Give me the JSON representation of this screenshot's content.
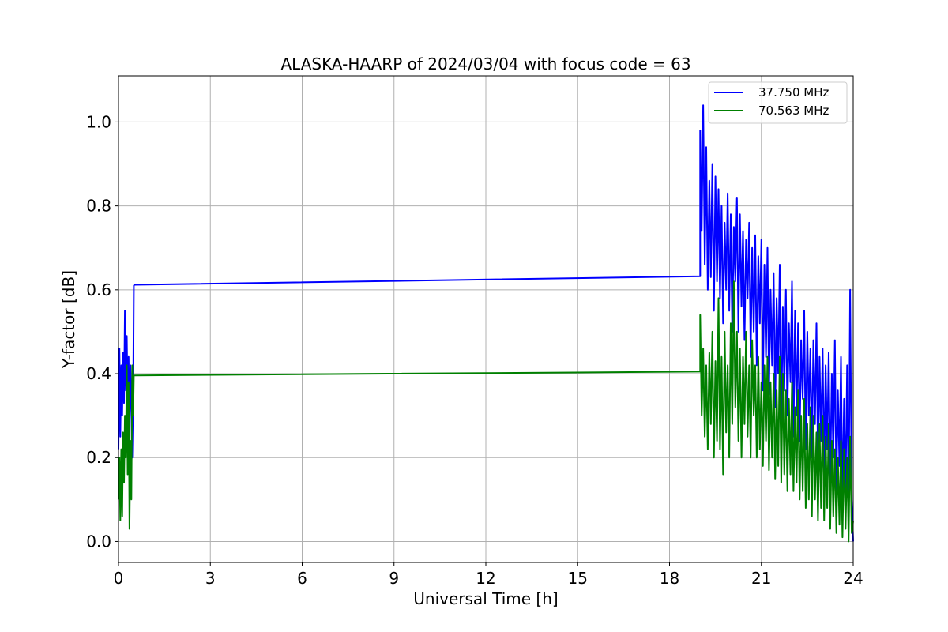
{
  "chart_data": {
    "type": "line",
    "title": "ALASKA-HAARP of 2024/03/04 with focus code = 63",
    "xlabel": "Universal Time [h]",
    "ylabel": "Y-factor [dB]",
    "xlim": [
      0,
      24
    ],
    "ylim": [
      -0.05,
      1.11
    ],
    "xticks": [
      0,
      3,
      6,
      9,
      12,
      15,
      18,
      21,
      24
    ],
    "xtick_labels": [
      "0",
      "3",
      "6",
      "9",
      "12",
      "15",
      "18",
      "21",
      "24"
    ],
    "yticks": [
      0.0,
      0.2,
      0.4,
      0.6,
      0.8,
      1.0
    ],
    "ytick_labels": [
      "0.0",
      "0.2",
      "0.4",
      "0.6",
      "0.8",
      "1.0"
    ],
    "grid": true,
    "legend_position": "top-right",
    "series": [
      {
        "name": "37.750 MHz",
        "color": "#0000ff",
        "x": [
          0.0,
          0.03,
          0.06,
          0.09,
          0.12,
          0.15,
          0.18,
          0.21,
          0.24,
          0.27,
          0.3,
          0.33,
          0.36,
          0.39,
          0.42,
          0.45,
          0.48,
          0.5,
          0.52,
          19.0,
          19.0,
          19.05,
          19.1,
          19.15,
          19.2,
          19.25,
          19.3,
          19.35,
          19.4,
          19.45,
          19.5,
          19.55,
          19.6,
          19.65,
          19.7,
          19.75,
          19.8,
          19.85,
          19.9,
          19.95,
          20.0,
          20.05,
          20.1,
          20.15,
          20.2,
          20.25,
          20.3,
          20.35,
          20.4,
          20.45,
          20.5,
          20.55,
          20.6,
          20.65,
          20.7,
          20.75,
          20.8,
          20.85,
          20.9,
          20.95,
          21.0,
          21.05,
          21.1,
          21.15,
          21.2,
          21.25,
          21.3,
          21.35,
          21.4,
          21.45,
          21.5,
          21.55,
          21.6,
          21.65,
          21.7,
          21.75,
          21.8,
          21.85,
          21.9,
          21.95,
          22.0,
          22.05,
          22.1,
          22.15,
          22.2,
          22.25,
          22.3,
          22.35,
          22.4,
          22.45,
          22.5,
          22.55,
          22.6,
          22.65,
          22.7,
          22.75,
          22.8,
          22.85,
          22.9,
          22.95,
          23.0,
          23.05,
          23.1,
          23.15,
          23.2,
          23.25,
          23.3,
          23.35,
          23.4,
          23.45,
          23.5,
          23.55,
          23.6,
          23.65,
          23.7,
          23.75,
          23.8,
          23.85,
          23.9,
          23.95,
          24.0
        ],
        "y": [
          0.22,
          0.46,
          0.25,
          0.42,
          0.3,
          0.45,
          0.33,
          0.55,
          0.36,
          0.49,
          0.32,
          0.44,
          0.28,
          0.42,
          0.31,
          0.2,
          0.35,
          0.61,
          0.612,
          0.632,
          0.98,
          0.74,
          1.04,
          0.66,
          0.94,
          0.6,
          0.86,
          0.63,
          0.9,
          0.55,
          0.87,
          0.62,
          0.84,
          0.58,
          0.8,
          0.52,
          0.76,
          0.6,
          0.83,
          0.55,
          0.78,
          0.5,
          0.75,
          0.62,
          0.82,
          0.5,
          0.78,
          0.56,
          0.74,
          0.48,
          0.72,
          0.58,
          0.76,
          0.44,
          0.7,
          0.5,
          0.73,
          0.42,
          0.68,
          0.52,
          0.72,
          0.36,
          0.66,
          0.44,
          0.7,
          0.35,
          0.6,
          0.42,
          0.64,
          0.32,
          0.58,
          0.4,
          0.66,
          0.26,
          0.56,
          0.36,
          0.6,
          0.3,
          0.52,
          0.38,
          0.62,
          0.25,
          0.55,
          0.3,
          0.52,
          0.24,
          0.48,
          0.34,
          0.55,
          0.22,
          0.5,
          0.3,
          0.46,
          0.2,
          0.48,
          0.28,
          0.52,
          0.18,
          0.44,
          0.24,
          0.46,
          0.16,
          0.42,
          0.22,
          0.45,
          0.14,
          0.4,
          0.2,
          0.48,
          0.12,
          0.36,
          0.18,
          0.44,
          0.08,
          0.34,
          0.12,
          0.42,
          0.06,
          0.6,
          0.1,
          0.0
        ]
      },
      {
        "name": "70.563 MHz",
        "color": "#008000",
        "x": [
          0.0,
          0.03,
          0.06,
          0.09,
          0.12,
          0.15,
          0.18,
          0.21,
          0.24,
          0.27,
          0.3,
          0.33,
          0.36,
          0.39,
          0.42,
          0.45,
          0.48,
          0.5,
          0.52,
          19.0,
          19.0,
          19.05,
          19.1,
          19.15,
          19.2,
          19.25,
          19.3,
          19.35,
          19.4,
          19.45,
          19.5,
          19.55,
          19.6,
          19.65,
          19.7,
          19.75,
          19.8,
          19.85,
          19.9,
          19.95,
          20.0,
          20.05,
          20.1,
          20.15,
          20.2,
          20.25,
          20.3,
          20.35,
          20.4,
          20.45,
          20.5,
          20.55,
          20.6,
          20.65,
          20.7,
          20.75,
          20.8,
          20.85,
          20.9,
          20.95,
          21.0,
          21.05,
          21.1,
          21.15,
          21.2,
          21.25,
          21.3,
          21.35,
          21.4,
          21.45,
          21.5,
          21.55,
          21.6,
          21.65,
          21.7,
          21.75,
          21.8,
          21.85,
          21.9,
          21.95,
          22.0,
          22.05,
          22.1,
          22.15,
          22.2,
          22.25,
          22.3,
          22.35,
          22.4,
          22.45,
          22.5,
          22.55,
          22.6,
          22.65,
          22.7,
          22.75,
          22.8,
          22.85,
          22.9,
          22.95,
          23.0,
          23.05,
          23.1,
          23.15,
          23.2,
          23.25,
          23.3,
          23.35,
          23.4,
          23.45,
          23.5,
          23.55,
          23.6,
          23.65,
          23.7,
          23.75,
          23.8,
          23.85,
          23.9,
          23.95,
          24.0
        ],
        "y": [
          0.1,
          0.2,
          0.05,
          0.22,
          0.06,
          0.26,
          0.14,
          0.3,
          0.2,
          0.42,
          0.16,
          0.38,
          0.03,
          0.24,
          0.1,
          0.42,
          0.3,
          0.395,
          0.396,
          0.405,
          0.54,
          0.3,
          0.46,
          0.25,
          0.42,
          0.22,
          0.45,
          0.28,
          0.5,
          0.2,
          0.43,
          0.24,
          0.58,
          0.22,
          0.44,
          0.16,
          0.5,
          0.26,
          0.42,
          0.2,
          0.52,
          0.28,
          0.62,
          0.32,
          0.5,
          0.24,
          0.46,
          0.2,
          0.44,
          0.28,
          0.5,
          0.25,
          0.42,
          0.2,
          0.48,
          0.3,
          0.42,
          0.2,
          0.44,
          0.22,
          0.38,
          0.18,
          0.42,
          0.24,
          0.44,
          0.17,
          0.38,
          0.2,
          0.4,
          0.15,
          0.36,
          0.18,
          0.44,
          0.14,
          0.4,
          0.16,
          0.36,
          0.12,
          0.34,
          0.16,
          0.38,
          0.12,
          0.32,
          0.14,
          0.36,
          0.1,
          0.3,
          0.12,
          0.34,
          0.08,
          0.28,
          0.1,
          0.32,
          0.06,
          0.3,
          0.1,
          0.26,
          0.05,
          0.28,
          0.08,
          0.3,
          0.05,
          0.25,
          0.08,
          0.28,
          0.03,
          0.24,
          0.06,
          0.22,
          0.02,
          0.2,
          0.04,
          0.24,
          0.01,
          0.22,
          0.03,
          0.2,
          0.0,
          0.25,
          0.02,
          0.05
        ]
      }
    ]
  }
}
